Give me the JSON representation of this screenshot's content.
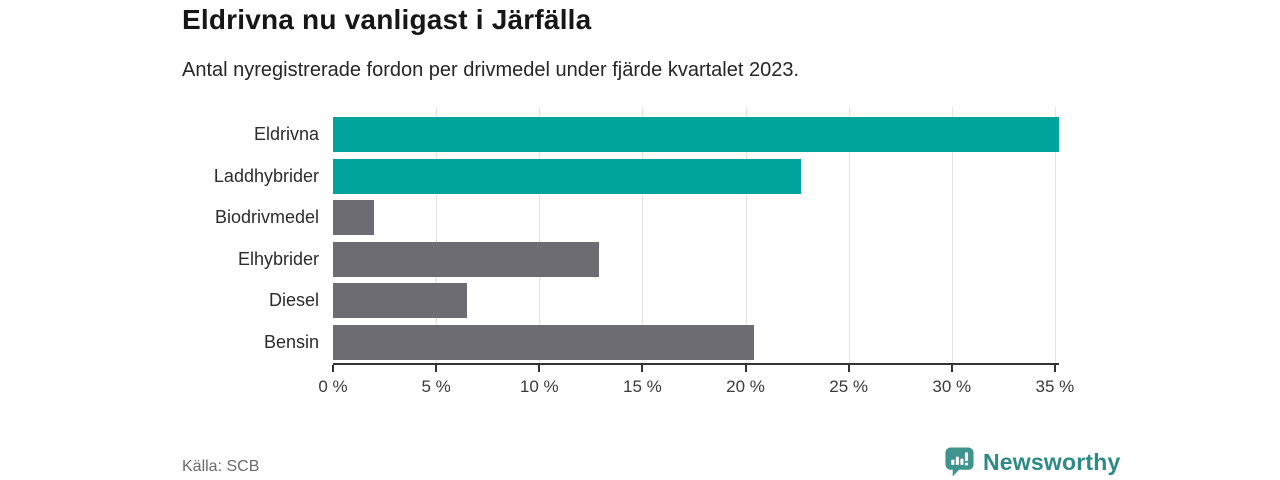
{
  "header": {
    "title": "Eldrivna nu vanligast i Järfälla",
    "subtitle": "Antal nyregistrerade fordon per drivmedel under fjärde kvartalet 2023."
  },
  "footer": {
    "source": "Källa: SCB",
    "brand": "Newsworthy"
  },
  "colors": {
    "bar_highlight": "#00a49c",
    "bar_default": "#6c6c72",
    "grid": "#e3e3e3",
    "axis": "#333333",
    "brand_text": "#2c8b85",
    "brand_icon": "#3f948d"
  },
  "chart_data": {
    "type": "bar",
    "orientation": "horizontal",
    "title": "Eldrivna nu vanligast i Järfälla",
    "subtitle": "Antal nyregistrerade fordon per drivmedel under fjärde kvartalet 2023.",
    "categories": [
      "Eldrivna",
      "Laddhybrider",
      "Biodrivmedel",
      "Elhybrider",
      "Diesel",
      "Bensin"
    ],
    "values": [
      35.2,
      22.7,
      2.0,
      12.9,
      6.5,
      20.4
    ],
    "unit": "%",
    "xlim": [
      0,
      35.2
    ],
    "x_ticks": [
      0,
      5,
      10,
      15,
      20,
      25,
      30,
      35
    ],
    "x_tick_labels": [
      "0 %",
      "5 %",
      "10 %",
      "15 %",
      "20 %",
      "25 %",
      "30 %",
      "35 %"
    ],
    "bar_colors": [
      "#00a49c",
      "#00a49c",
      "#6c6c72",
      "#6c6c72",
      "#6c6c72",
      "#6c6c72"
    ],
    "grid": true,
    "legend": "none",
    "source": "Källa: SCB"
  }
}
